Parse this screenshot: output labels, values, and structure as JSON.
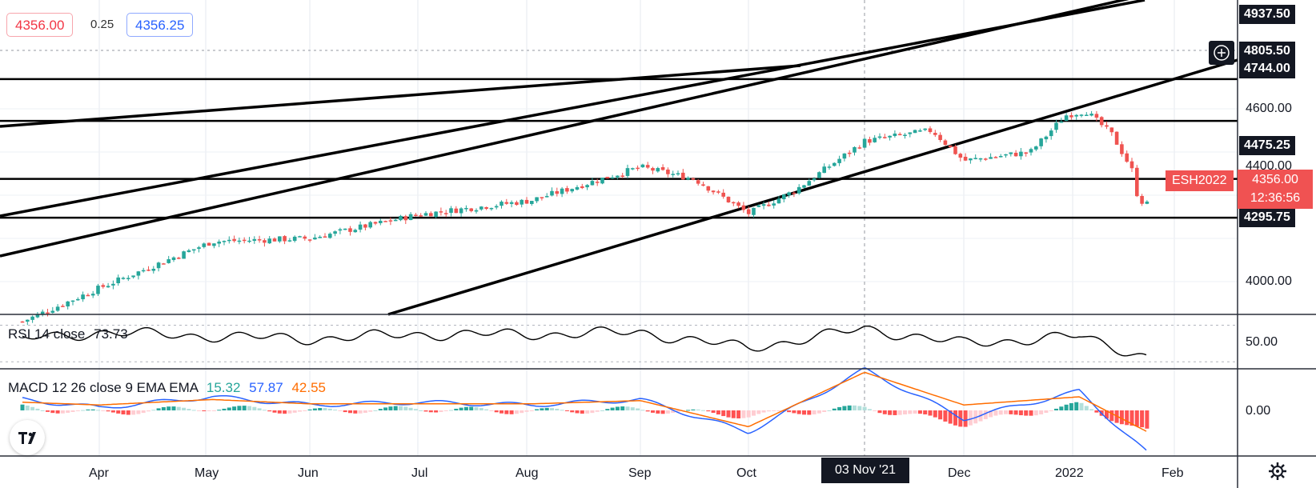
{
  "quote": {
    "bid": "4356.00",
    "spread": "0.25",
    "ask": "4356.25"
  },
  "symbol": "ESH2022",
  "last_price": {
    "value": "4356.00",
    "countdown": "12:36:56"
  },
  "crosshair_date": "03 Nov '21",
  "colors": {
    "up": "#26a69a",
    "down": "#ef5350",
    "rsi": "#000000",
    "macd": "#2962ff",
    "signal": "#ff6d00",
    "hist_pos_strong": "#26a69a",
    "hist_pos_weak": "#b2dfdb",
    "hist_neg_strong": "#ff5252",
    "hist_neg_weak": "#ffcdd2"
  },
  "icons": {
    "add": "plus-circle-icon",
    "logo": "tradingview-logo-icon",
    "settings": "gear-icon"
  },
  "chart_data": [
    {
      "type": "candlestick",
      "title": "",
      "price_labels": [
        "4937.50",
        "4805.50",
        "4744.00",
        "4475.25",
        "4295.75"
      ],
      "price_ticks": [
        "4600.00",
        "4400.00",
        "4000.00"
      ],
      "date_ticks": [
        "Apr",
        "May",
        "Jun",
        "Jul",
        "Aug",
        "Sep",
        "Oct",
        "Dec",
        "2022",
        "Feb"
      ],
      "horizontal_levels": [
        4937.5,
        4744.0,
        4475.25,
        4295.75
      ],
      "ylim": [
        3870,
        5000
      ],
      "x": [
        "2021-03-08",
        "2021-04-01",
        "2021-05-03",
        "2021-06-01",
        "2021-07-01",
        "2021-08-02",
        "2021-09-01",
        "2021-09-16",
        "2021-10-01",
        "2021-10-14",
        "2021-11-03",
        "2021-11-22",
        "2021-12-01",
        "2021-12-20",
        "2021-12-30",
        "2022-01-05",
        "2022-01-13",
        "2022-01-19",
        "2022-01-21",
        "2022-01-24"
      ],
      "close": [
        3815,
        3970,
        4186,
        4200,
        4310,
        4375,
        4530,
        4475,
        4315,
        4420,
        4650,
        4700,
        4560,
        4600,
        4770,
        4790,
        4680,
        4520,
        4380,
        4356
      ]
    },
    {
      "type": "line",
      "title": "",
      "series": [
        {
          "name": "RSI 14 close",
          "last": "73.73"
        }
      ],
      "y_tick": "50.00",
      "x": [
        "2021-03-08",
        "2021-04-01",
        "2021-05-03",
        "2021-06-01",
        "2021-07-01",
        "2021-08-02",
        "2021-09-01",
        "2021-10-01",
        "2021-11-03",
        "2021-12-01",
        "2022-01-03",
        "2022-01-24"
      ],
      "values": [
        55,
        62,
        58,
        55,
        60,
        60,
        62,
        45,
        66,
        50,
        58,
        35
      ]
    },
    {
      "type": "line",
      "title": "",
      "series": [
        {
          "name": "MACD 12 26 close 9 EMA EMA",
          "last": "15.32"
        },
        {
          "name": "",
          "last": "57.87"
        },
        {
          "name": "",
          "last": "42.55"
        }
      ],
      "y_tick": "0.00",
      "x": [
        "2021-03-08",
        "2021-04-01",
        "2021-05-03",
        "2021-06-01",
        "2021-07-01",
        "2021-08-02",
        "2021-09-01",
        "2021-10-01",
        "2021-11-03",
        "2021-12-01",
        "2022-01-03",
        "2022-01-24"
      ],
      "macd": [
        20,
        5,
        25,
        10,
        15,
        10,
        20,
        -40,
        75,
        -15,
        35,
        -80
      ],
      "signal": [
        15,
        10,
        20,
        12,
        12,
        12,
        18,
        -30,
        70,
        10,
        25,
        -40
      ]
    }
  ]
}
